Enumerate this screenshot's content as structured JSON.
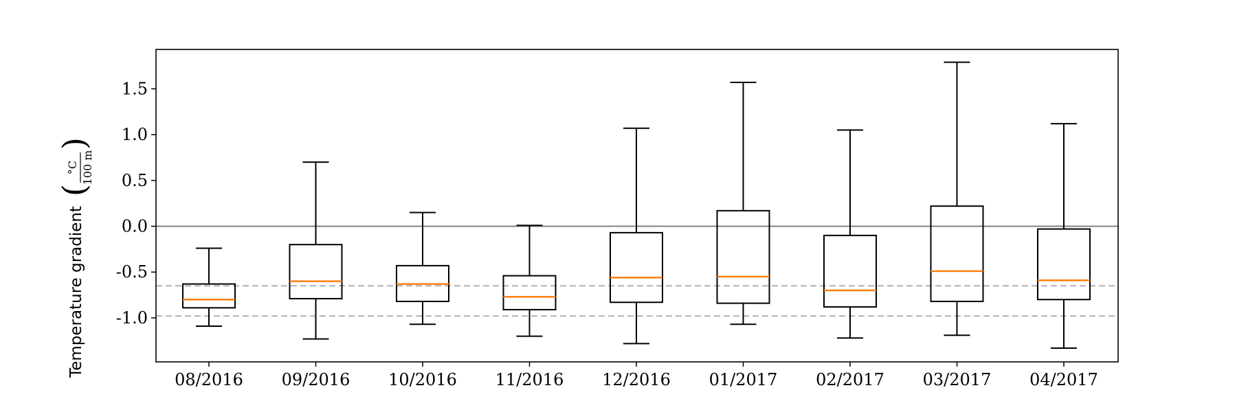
{
  "chart_data": {
    "type": "box",
    "title": "",
    "xlabel": "",
    "ylabel": "Temperature gradient",
    "yunit": {
      "numerator": "°C",
      "denominator": "100 m"
    },
    "ylim": [
      -1.48,
      1.93
    ],
    "yticks": [
      "-1.0",
      "-0.5",
      "0.0",
      "0.5",
      "1.0",
      "1.5"
    ],
    "ytick_values": [
      -1.0,
      -0.5,
      0.0,
      0.5,
      1.0,
      1.5
    ],
    "grid": false,
    "legend": "none",
    "reference_lines": [
      {
        "value": 0.0,
        "style": "solid",
        "color": "#808080"
      },
      {
        "value": -0.65,
        "style": "dashed",
        "color": "#b0b0b0"
      },
      {
        "value": -0.98,
        "style": "dashed",
        "color": "#b0b0b0"
      }
    ],
    "categories": [
      "08/2016",
      "09/2016",
      "10/2016",
      "11/2016",
      "12/2016",
      "01/2017",
      "02/2017",
      "03/2017",
      "04/2017"
    ],
    "boxes": [
      {
        "label": "08/2016",
        "whisker_low": -1.09,
        "q1": -0.89,
        "median": -0.8,
        "q3": -0.63,
        "whisker_high": -0.24
      },
      {
        "label": "09/2016",
        "whisker_low": -1.23,
        "q1": -0.79,
        "median": -0.6,
        "q3": -0.2,
        "whisker_high": 0.7
      },
      {
        "label": "10/2016",
        "whisker_low": -1.07,
        "q1": -0.82,
        "median": -0.63,
        "q3": -0.43,
        "whisker_high": 0.15
      },
      {
        "label": "11/2016",
        "whisker_low": -1.2,
        "q1": -0.91,
        "median": -0.77,
        "q3": -0.54,
        "whisker_high": 0.01
      },
      {
        "label": "12/2016",
        "whisker_low": -1.28,
        "q1": -0.83,
        "median": -0.56,
        "q3": -0.07,
        "whisker_high": 1.07
      },
      {
        "label": "01/2017",
        "whisker_low": -1.07,
        "q1": -0.84,
        "median": -0.55,
        "q3": 0.17,
        "whisker_high": 1.57
      },
      {
        "label": "02/2017",
        "whisker_low": -1.22,
        "q1": -0.88,
        "median": -0.7,
        "q3": -0.1,
        "whisker_high": 1.05
      },
      {
        "label": "03/2017",
        "whisker_low": -1.19,
        "q1": -0.82,
        "median": -0.49,
        "q3": 0.22,
        "whisker_high": 1.79
      },
      {
        "label": "04/2017",
        "whisker_low": -1.33,
        "q1": -0.8,
        "median": -0.59,
        "q3": -0.03,
        "whisker_high": 1.12
      }
    ],
    "colors": {
      "box": "#000000",
      "median": "#ff7f0e"
    }
  }
}
